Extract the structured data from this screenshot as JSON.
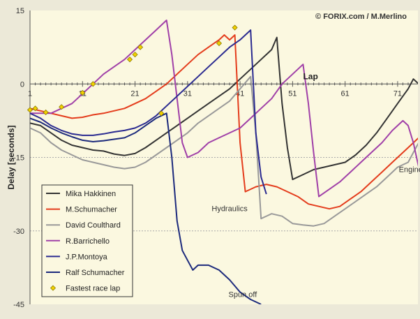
{
  "chart_data": {
    "type": "line",
    "credit": "© FORIX.com / M.Merlino",
    "xlabel": "Lap",
    "ylabel": "Delay [seconds]",
    "xlim": [
      1,
      73
    ],
    "ylim": [
      -45,
      15
    ],
    "yticks": [
      15,
      0,
      -15,
      -30,
      -45
    ],
    "xticks": [
      1,
      11,
      21,
      31,
      41,
      51,
      61,
      71
    ],
    "grid": "horizontal dashed at ticks",
    "legend_position": "bottom-left",
    "series": [
      {
        "name": "Mika Hakkinen",
        "color": "#333333",
        "points": [
          [
            1,
            -8
          ],
          [
            3,
            -8.5
          ],
          [
            5,
            -10
          ],
          [
            7,
            -11.5
          ],
          [
            9,
            -12.5
          ],
          [
            11,
            -13
          ],
          [
            13,
            -13.5
          ],
          [
            15,
            -13.7
          ],
          [
            17,
            -14.3
          ],
          [
            19,
            -14.6
          ],
          [
            21,
            -14.2
          ],
          [
            23,
            -13
          ],
          [
            25,
            -11.5
          ],
          [
            27,
            -10
          ],
          [
            29,
            -8.5
          ],
          [
            31,
            -7
          ],
          [
            33,
            -5.5
          ],
          [
            35,
            -4
          ],
          [
            37,
            -2.5
          ],
          [
            39,
            -1
          ],
          [
            41,
            1
          ],
          [
            43,
            3
          ],
          [
            45,
            5
          ],
          [
            47,
            7
          ],
          [
            48,
            9.5
          ],
          [
            49,
            -4
          ],
          [
            50,
            -13
          ],
          [
            51,
            -19.5
          ],
          [
            53,
            -18.5
          ],
          [
            55,
            -17.5
          ],
          [
            57,
            -17
          ],
          [
            59,
            -16.5
          ],
          [
            61,
            -16
          ],
          [
            63,
            -14.5
          ],
          [
            65,
            -12.5
          ],
          [
            67,
            -10
          ],
          [
            69,
            -7
          ],
          [
            71,
            -4
          ],
          [
            73,
            -1
          ],
          [
            74,
            1
          ],
          [
            75,
            0
          ]
        ]
      },
      {
        "name": "M.Schumacher",
        "color": "#e43c1c",
        "points": [
          [
            1,
            -5
          ],
          [
            3,
            -5.5
          ],
          [
            5,
            -6
          ],
          [
            7,
            -6.5
          ],
          [
            9,
            -7
          ],
          [
            11,
            -6.8
          ],
          [
            13,
            -6.3
          ],
          [
            15,
            -6
          ],
          [
            17,
            -5.5
          ],
          [
            19,
            -5
          ],
          [
            21,
            -4
          ],
          [
            23,
            -3
          ],
          [
            25,
            -1.5
          ],
          [
            27,
            0
          ],
          [
            29,
            2
          ],
          [
            31,
            4
          ],
          [
            33,
            6
          ],
          [
            35,
            7.5
          ],
          [
            37,
            9
          ],
          [
            38,
            10
          ],
          [
            39,
            9
          ],
          [
            40,
            10
          ],
          [
            41,
            -12
          ],
          [
            42,
            -22
          ],
          [
            44,
            -21
          ],
          [
            46,
            -20.5
          ],
          [
            48,
            -21
          ],
          [
            50,
            -22
          ],
          [
            52,
            -23
          ],
          [
            54,
            -24.5
          ],
          [
            56,
            -25
          ],
          [
            58,
            -25.5
          ],
          [
            60,
            -25
          ],
          [
            62,
            -23.5
          ],
          [
            64,
            -22
          ],
          [
            66,
            -20
          ],
          [
            68,
            -18
          ],
          [
            70,
            -16
          ],
          [
            72,
            -14
          ],
          [
            74,
            -12
          ],
          [
            75,
            -11
          ]
        ]
      },
      {
        "name": "David Coulthard",
        "color": "#999999",
        "points": [
          [
            1,
            -9
          ],
          [
            3,
            -10
          ],
          [
            5,
            -12
          ],
          [
            7,
            -13.5
          ],
          [
            9,
            -14.5
          ],
          [
            11,
            -15.5
          ],
          [
            13,
            -16
          ],
          [
            15,
            -16.5
          ],
          [
            17,
            -17
          ],
          [
            19,
            -17.3
          ],
          [
            21,
            -17
          ],
          [
            23,
            -16
          ],
          [
            25,
            -14.5
          ],
          [
            27,
            -13
          ],
          [
            29,
            -11.5
          ],
          [
            31,
            -10
          ],
          [
            33,
            -8
          ],
          [
            35,
            -6.5
          ],
          [
            37,
            -5
          ],
          [
            39,
            -3.5
          ],
          [
            41,
            -1
          ],
          [
            43,
            1.5
          ],
          [
            44,
            -10
          ],
          [
            45,
            -27.5
          ],
          [
            47,
            -26.5
          ],
          [
            49,
            -27
          ],
          [
            51,
            -28.5
          ],
          [
            53,
            -28.8
          ],
          [
            55,
            -29
          ],
          [
            57,
            -28.5
          ],
          [
            59,
            -27
          ],
          [
            61,
            -25.5
          ],
          [
            63,
            -24
          ],
          [
            65,
            -22.5
          ],
          [
            67,
            -21
          ],
          [
            69,
            -19
          ],
          [
            71,
            -17
          ],
          [
            73,
            -16
          ],
          [
            74,
            -14
          ],
          [
            75,
            -12
          ]
        ]
      },
      {
        "name": "R.Barrichello",
        "color": "#a040a8",
        "points": [
          [
            1,
            -6
          ],
          [
            3,
            -6
          ],
          [
            5,
            -6
          ],
          [
            7,
            -5
          ],
          [
            9,
            -4
          ],
          [
            11,
            -2
          ],
          [
            13,
            0
          ],
          [
            15,
            2
          ],
          [
            17,
            3.5
          ],
          [
            19,
            5
          ],
          [
            21,
            7
          ],
          [
            23,
            9
          ],
          [
            25,
            11
          ],
          [
            27,
            13
          ],
          [
            28,
            6
          ],
          [
            29,
            -3
          ],
          [
            30,
            -12
          ],
          [
            31,
            -15
          ],
          [
            33,
            -14
          ],
          [
            35,
            -12
          ],
          [
            37,
            -11
          ],
          [
            39,
            -10
          ],
          [
            41,
            -9
          ],
          [
            43,
            -7
          ],
          [
            45,
            -5
          ],
          [
            47,
            -3
          ],
          [
            49,
            0
          ],
          [
            51,
            2
          ],
          [
            53,
            4
          ],
          [
            54,
            -4
          ],
          [
            55,
            -14
          ],
          [
            56,
            -23
          ],
          [
            58,
            -21.5
          ],
          [
            60,
            -20
          ],
          [
            62,
            -18
          ],
          [
            64,
            -16
          ],
          [
            66,
            -14
          ],
          [
            68,
            -12
          ],
          [
            70,
            -9.5
          ],
          [
            72,
            -7.5
          ],
          [
            73,
            -8.5
          ],
          [
            74,
            -12
          ],
          [
            75,
            -17
          ]
        ]
      },
      {
        "name": "J.P.Montoya",
        "color": "#2a2a90",
        "points": [
          [
            1,
            -6
          ],
          [
            3,
            -7
          ],
          [
            5,
            -8.5
          ],
          [
            7,
            -9.5
          ],
          [
            9,
            -10.2
          ],
          [
            11,
            -10.5
          ],
          [
            13,
            -10.5
          ],
          [
            15,
            -10.2
          ],
          [
            17,
            -9.8
          ],
          [
            19,
            -9.5
          ],
          [
            21,
            -9
          ],
          [
            23,
            -8
          ],
          [
            25,
            -6.5
          ],
          [
            27,
            -4.5
          ],
          [
            29,
            -2.5
          ],
          [
            31,
            -0.5
          ],
          [
            33,
            1.5
          ],
          [
            35,
            3.5
          ],
          [
            37,
            5.5
          ],
          [
            39,
            7.5
          ],
          [
            41,
            9
          ],
          [
            43,
            11
          ],
          [
            44,
            -10
          ],
          [
            45,
            -19
          ],
          [
            46,
            -22.5
          ]
        ]
      },
      {
        "name": "Ralf Schumacher",
        "color": "#1c2a7c",
        "points": [
          [
            1,
            -7
          ],
          [
            3,
            -7.8
          ],
          [
            5,
            -9
          ],
          [
            7,
            -10
          ],
          [
            9,
            -10.8
          ],
          [
            11,
            -11.5
          ],
          [
            13,
            -11.8
          ],
          [
            15,
            -11.6
          ],
          [
            17,
            -11.3
          ],
          [
            19,
            -11
          ],
          [
            21,
            -10
          ],
          [
            23,
            -8.5
          ],
          [
            25,
            -7
          ],
          [
            27,
            -6
          ],
          [
            28,
            -15
          ],
          [
            29,
            -28
          ],
          [
            30,
            -34
          ],
          [
            31,
            -36
          ],
          [
            32,
            -38
          ],
          [
            33,
            -37
          ],
          [
            35,
            -37
          ],
          [
            37,
            -38
          ],
          [
            39,
            -40
          ],
          [
            41,
            -42.5
          ],
          [
            43,
            -44
          ],
          [
            44,
            -44.5
          ],
          [
            45,
            -45
          ]
        ]
      }
    ],
    "fastest_laps": {
      "name": "Fastest race lap",
      "color": "#f2d100",
      "points": [
        [
          1,
          -5.3
        ],
        [
          2,
          -5
        ],
        [
          4,
          -5.8
        ],
        [
          7,
          -4.7
        ],
        [
          11,
          -1.8
        ],
        [
          13,
          0
        ],
        [
          20,
          5
        ],
        [
          21,
          6
        ],
        [
          22,
          7.5
        ],
        [
          26,
          -6
        ],
        [
          37,
          8.3
        ],
        [
          40,
          11.5
        ]
      ]
    },
    "annotations": [
      {
        "text": "Hydraulics",
        "x": 39,
        "y": -26
      },
      {
        "text": "Spun off",
        "x": 41.5,
        "y": -43.5
      },
      {
        "text": "Engine",
        "x": 73.5,
        "y": -18
      }
    ]
  }
}
